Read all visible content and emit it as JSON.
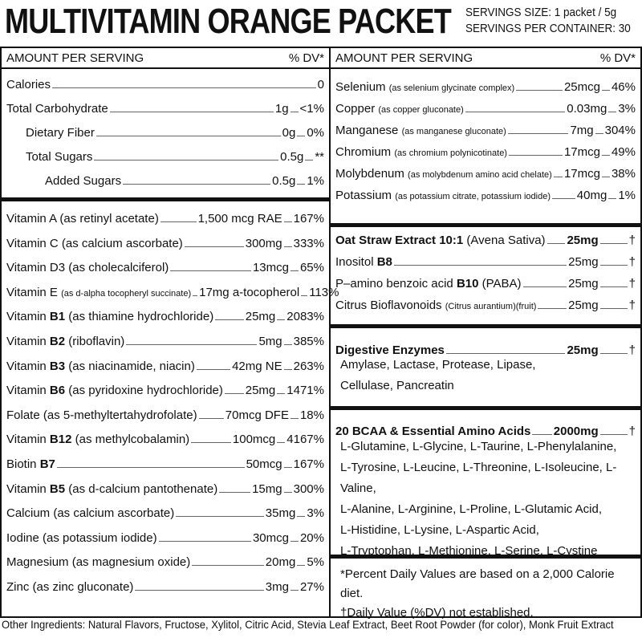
{
  "title": "MULTIVITAMIN ORANGE PACKET",
  "servings": {
    "size": "SERVINGS SIZE: 1 packet / 5g",
    "per_container": "SERVINGS PER CONTAINER: 30"
  },
  "header": {
    "amount": "AMOUNT PER SERVING",
    "dv": "% DV*"
  },
  "macros": [
    {
      "label": "Calories",
      "amount": "0",
      "dv": "",
      "indent": 0
    },
    {
      "label": "Total Carbohydrate",
      "amount": "1g",
      "dv": "<1%",
      "indent": 0
    },
    {
      "label": "Dietary Fiber",
      "amount": "0g",
      "dv": "0%",
      "indent": 1
    },
    {
      "label": "Total Sugars",
      "amount": "0.5g",
      "dv": "**",
      "indent": 1
    },
    {
      "label": "Added Sugars",
      "amount": "0.5g",
      "dv": "1%",
      "indent": 2
    }
  ],
  "vitamins": [
    {
      "label": "Vitamin A (as retinyl acetate)",
      "amount": "1,500 mcg RAE",
      "dv": "167%"
    },
    {
      "label": "Vitamin C (as calcium ascorbate)",
      "amount": "300mg",
      "dv": "333%"
    },
    {
      "label": "Vitamin D3 (as cholecalciferol)",
      "amount": "13mcg",
      "dv": "65%"
    },
    {
      "label": "Vitamin E ",
      "small": "(as d-alpha tocopheryl succinate)",
      "amount": "17mg a-tocopherol",
      "dv": "113%"
    },
    {
      "label": "Vitamin ",
      "bold": "B1",
      "rest": " (as thiamine hydrochloride)",
      "amount": "25mg",
      "dv": "2083%"
    },
    {
      "label": "Vitamin ",
      "bold": "B2",
      "rest": " (riboflavin)",
      "amount": "5mg",
      "dv": "385%"
    },
    {
      "label": "Vitamin ",
      "bold": "B3",
      "rest": " (as niacinamide, niacin)",
      "amount": "42mg NE",
      "dv": "263%"
    },
    {
      "label": "Vitamin ",
      "bold": "B6",
      "rest": " (as pyridoxine hydrochloride)",
      "amount": "25mg",
      "dv": "1471%"
    },
    {
      "label": "Folate (as 5-methyltertahydrofolate)",
      "amount": "70mcg DFE",
      "dv": "18%"
    },
    {
      "label": "Vitamin ",
      "bold": "B12",
      "rest": " (as methylcobalamin)",
      "amount": "100mcg",
      "dv": "4167%"
    },
    {
      "label": "Biotin ",
      "bold": "B7",
      "amount": "50mcg",
      "dv": "167%"
    },
    {
      "label": "Vitamin ",
      "bold": "B5",
      "rest": " (as d-calcium pantothenate)",
      "amount": "15mg",
      "dv": "300%"
    },
    {
      "label": "Calcium (as calcium ascorbate)",
      "amount": "35mg",
      "dv": "3%"
    },
    {
      "label": "Iodine (as potassium iodide)",
      "amount": "30mcg",
      "dv": "20%"
    },
    {
      "label": "Magnesium (as magnesium oxide)",
      "amount": "20mg",
      "dv": "5%"
    },
    {
      "label": "Zinc (as zinc gluconate)",
      "amount": "3mg",
      "dv": "27%"
    }
  ],
  "minerals": [
    {
      "label": "Selenium ",
      "small": "(as selenium glycinate complex)",
      "amount": "25mcg",
      "dv": "46%"
    },
    {
      "label": "Copper ",
      "small": "(as copper gluconate)",
      "amount": "0.03mg",
      "dv": "3%"
    },
    {
      "label": "Manganese ",
      "small": "(as manganese gluconate)",
      "amount": "7mg",
      "dv": "304%"
    },
    {
      "label": "Chromium ",
      "small": "(as chromium polynicotinate)",
      "amount": "17mcg",
      "dv": "49%"
    },
    {
      "label": "Molybdenum ",
      "small": "(as molybdenum amino acid chelate)",
      "amount": "17mcg",
      "dv": "38%"
    },
    {
      "label": "Potassium ",
      "small": "(as potassium citrate, potassium iodide)",
      "amount": "40mg",
      "dv": "1%"
    }
  ],
  "extracts": [
    {
      "bold": "Oat Straw Extract 10:1",
      "rest": " (Avena Sativa)",
      "amount": "25mg",
      "amount_bold": true,
      "dv": "†"
    },
    {
      "label": "Inositol ",
      "bold": "B8",
      "amount": "25mg",
      "dv": "†"
    },
    {
      "label": "P–amino benzoic acid ",
      "bold": "B10",
      "rest": " (PABA)",
      "amount": "25mg",
      "dv": "†"
    },
    {
      "label": "Citrus Bioflavonoids ",
      "small": "(Citrus aurantium)(fruit)",
      "amount": "25mg",
      "dv": "†"
    }
  ],
  "enzymes": {
    "title": "Digestive Enzymes",
    "amount": "25mg",
    "dv": "†",
    "lines": [
      "Amylase, Lactase, Protease, Lipase,",
      "Cellulase, Pancreatin"
    ]
  },
  "bcaa": {
    "title": "20 BCAA & Essential Amino Acids",
    "amount": "2000mg",
    "dv": "†",
    "lines": [
      "L-Glutamine, L-Glycine, L-Taurine, L-Phenylalanine,",
      "L-Tyrosine, L-Leucine, L-Threonine, L-Isoleucine,  L-Valine,",
      "L-Alanine, L-Arginine, L-Proline, L-Glutamic Acid,",
      "L-Histidine, L-Lysine, L-Aspartic Acid,",
      "L-Tryptophan, L-Methionine, L-Serine, L-Cystine"
    ]
  },
  "footnotes": [
    "*Percent Daily Values are based on a 2,000 Calorie diet.",
    "†Daily Value (%DV) not established."
  ],
  "other_ingredients": "Other Ingredients: Natural Flavors, Fructose, Xylitol, Citric Acid, Stevia Leaf Extract, Beet Root Powder (for color), Monk Fruit Extract"
}
